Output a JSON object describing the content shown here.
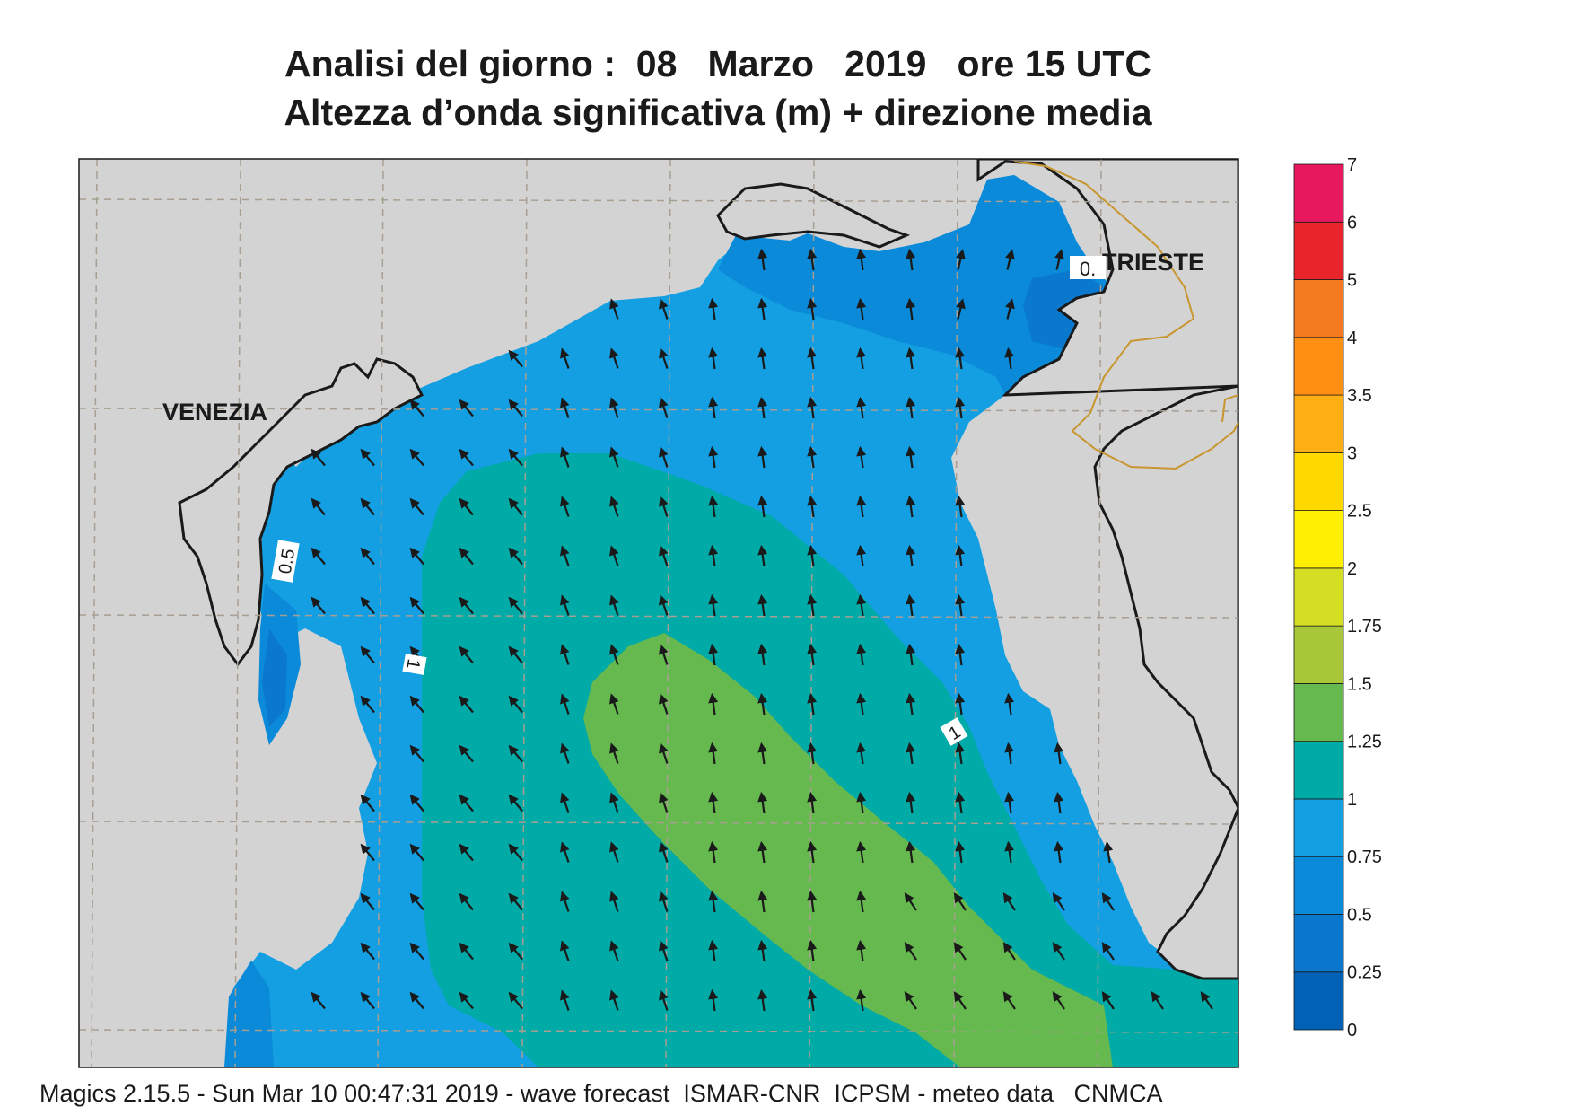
{
  "title": {
    "line1": "Analisi del giorno :  08   Marzo   2019   ore 15 UTC",
    "line2": "Altezza d’onda significativa (m) + direzione media"
  },
  "map": {
    "places": [
      "VENEZIA",
      "TRIESTE"
    ],
    "contour_labels": [
      "0.5",
      "1",
      "1",
      "0."
    ],
    "land_color": "#d3d3d3",
    "coast_color": "#1a1a1a",
    "border_color": "#c8962f",
    "grid_style": "dashed"
  },
  "legend": {
    "ticks": [
      "0",
      "0.25",
      "0.5",
      "0.75",
      "1",
      "1.25",
      "1.5",
      "1.75",
      "2",
      "2.5",
      "3",
      "3.5",
      "4",
      "5",
      "6",
      "7"
    ],
    "colors": [
      "#0061b5",
      "#0a78cc",
      "#0a8ad8",
      "#139fe2",
      "#00aaa7",
      "#65b94f",
      "#a8c83a",
      "#d5de22",
      "#ffef00",
      "#ffd800",
      "#ffaf14",
      "#ff9014",
      "#f47a20",
      "#e8252a",
      "#e8185e"
    ]
  },
  "footer": "Magics 2.15.5 - Sun Mar 10 00:47:31 2019 - wave forecast  ISMAR-CNR  ICPSM - meteo data   CNMCA"
}
